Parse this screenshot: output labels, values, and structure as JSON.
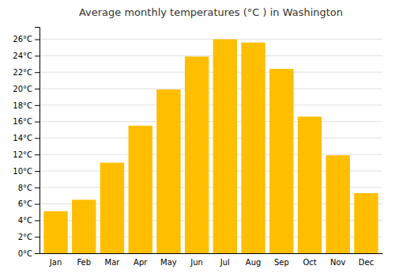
{
  "chart_data": {
    "type": "bar",
    "title": "Average monthly temperatures (°C ) in Washington",
    "categories": [
      "Jan",
      "Feb",
      "Mar",
      "Apr",
      "May",
      "Jun",
      "Jul",
      "Aug",
      "Sep",
      "Oct",
      "Nov",
      "Dec"
    ],
    "values": [
      5.1,
      6.5,
      11.0,
      15.5,
      19.9,
      23.9,
      26.0,
      25.6,
      22.4,
      16.6,
      11.9,
      7.3
    ],
    "color": "#FFBE00",
    "ylim": [
      0,
      27.5
    ],
    "yticks": [
      {
        "value": 0,
        "label": "0°C"
      },
      {
        "value": 2,
        "label": "2°C"
      },
      {
        "value": 4,
        "label": "4°C"
      },
      {
        "value": 6,
        "label": "6°C"
      },
      {
        "value": 8,
        "label": "8°C"
      },
      {
        "value": 10,
        "label": "10°C"
      },
      {
        "value": 12,
        "label": "12°C"
      },
      {
        "value": 14,
        "label": "14°C"
      },
      {
        "value": 16,
        "label": "16°C"
      },
      {
        "value": 18,
        "label": "18°C"
      },
      {
        "value": 20,
        "label": "20°C"
      },
      {
        "value": 22,
        "label": "22°C"
      },
      {
        "value": 24,
        "label": "24°C"
      },
      {
        "value": 26,
        "label": "26°C"
      }
    ],
    "grid": true
  }
}
